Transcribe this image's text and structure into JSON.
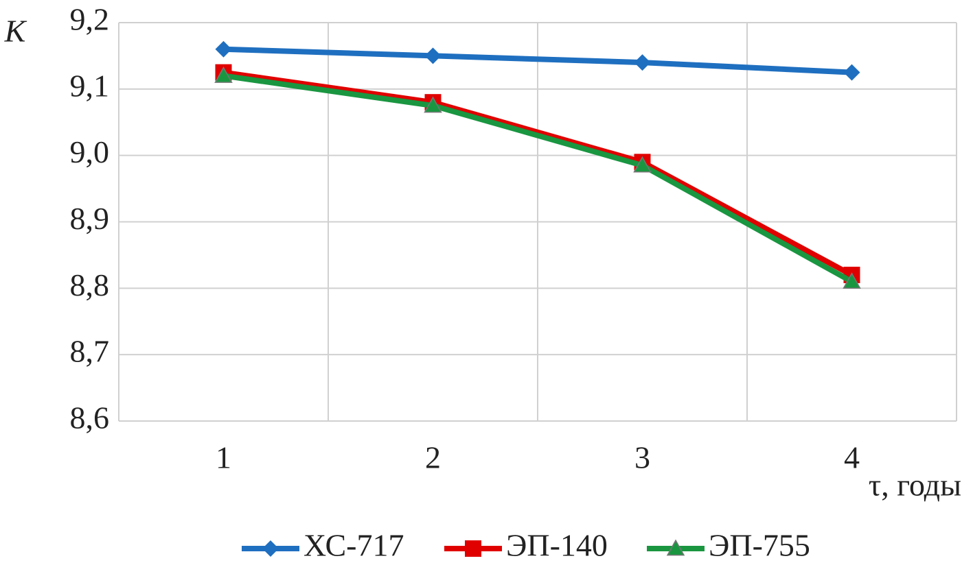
{
  "chart_data": {
    "type": "line",
    "y_label": "K",
    "x_label": "τ, годы",
    "categories": [
      "1",
      "2",
      "3",
      "4"
    ],
    "series": [
      {
        "name": "ХС-717",
        "color": "#1f6fc0",
        "marker": "diamond",
        "values": [
          9.16,
          9.15,
          9.14,
          9.125
        ]
      },
      {
        "name": "ЭП-140",
        "color": "#e00000",
        "marker": "square",
        "values": [
          9.125,
          9.08,
          8.99,
          8.82
        ]
      },
      {
        "name": "ЭП-755",
        "color": "#1a9641",
        "marker": "triangle",
        "values": [
          9.12,
          9.075,
          8.985,
          8.81
        ]
      }
    ],
    "ylim": [
      8.6,
      9.2
    ],
    "yticks": [
      {
        "value": 8.6,
        "label": "8,6"
      },
      {
        "value": 8.7,
        "label": "8,7"
      },
      {
        "value": 8.8,
        "label": "8,8"
      },
      {
        "value": 8.9,
        "label": "8,9"
      },
      {
        "value": 9.0,
        "label": "9,0"
      },
      {
        "value": 9.1,
        "label": "9,1"
      },
      {
        "value": 9.2,
        "label": "9,2"
      }
    ],
    "grid": true,
    "legend": "bottom"
  }
}
